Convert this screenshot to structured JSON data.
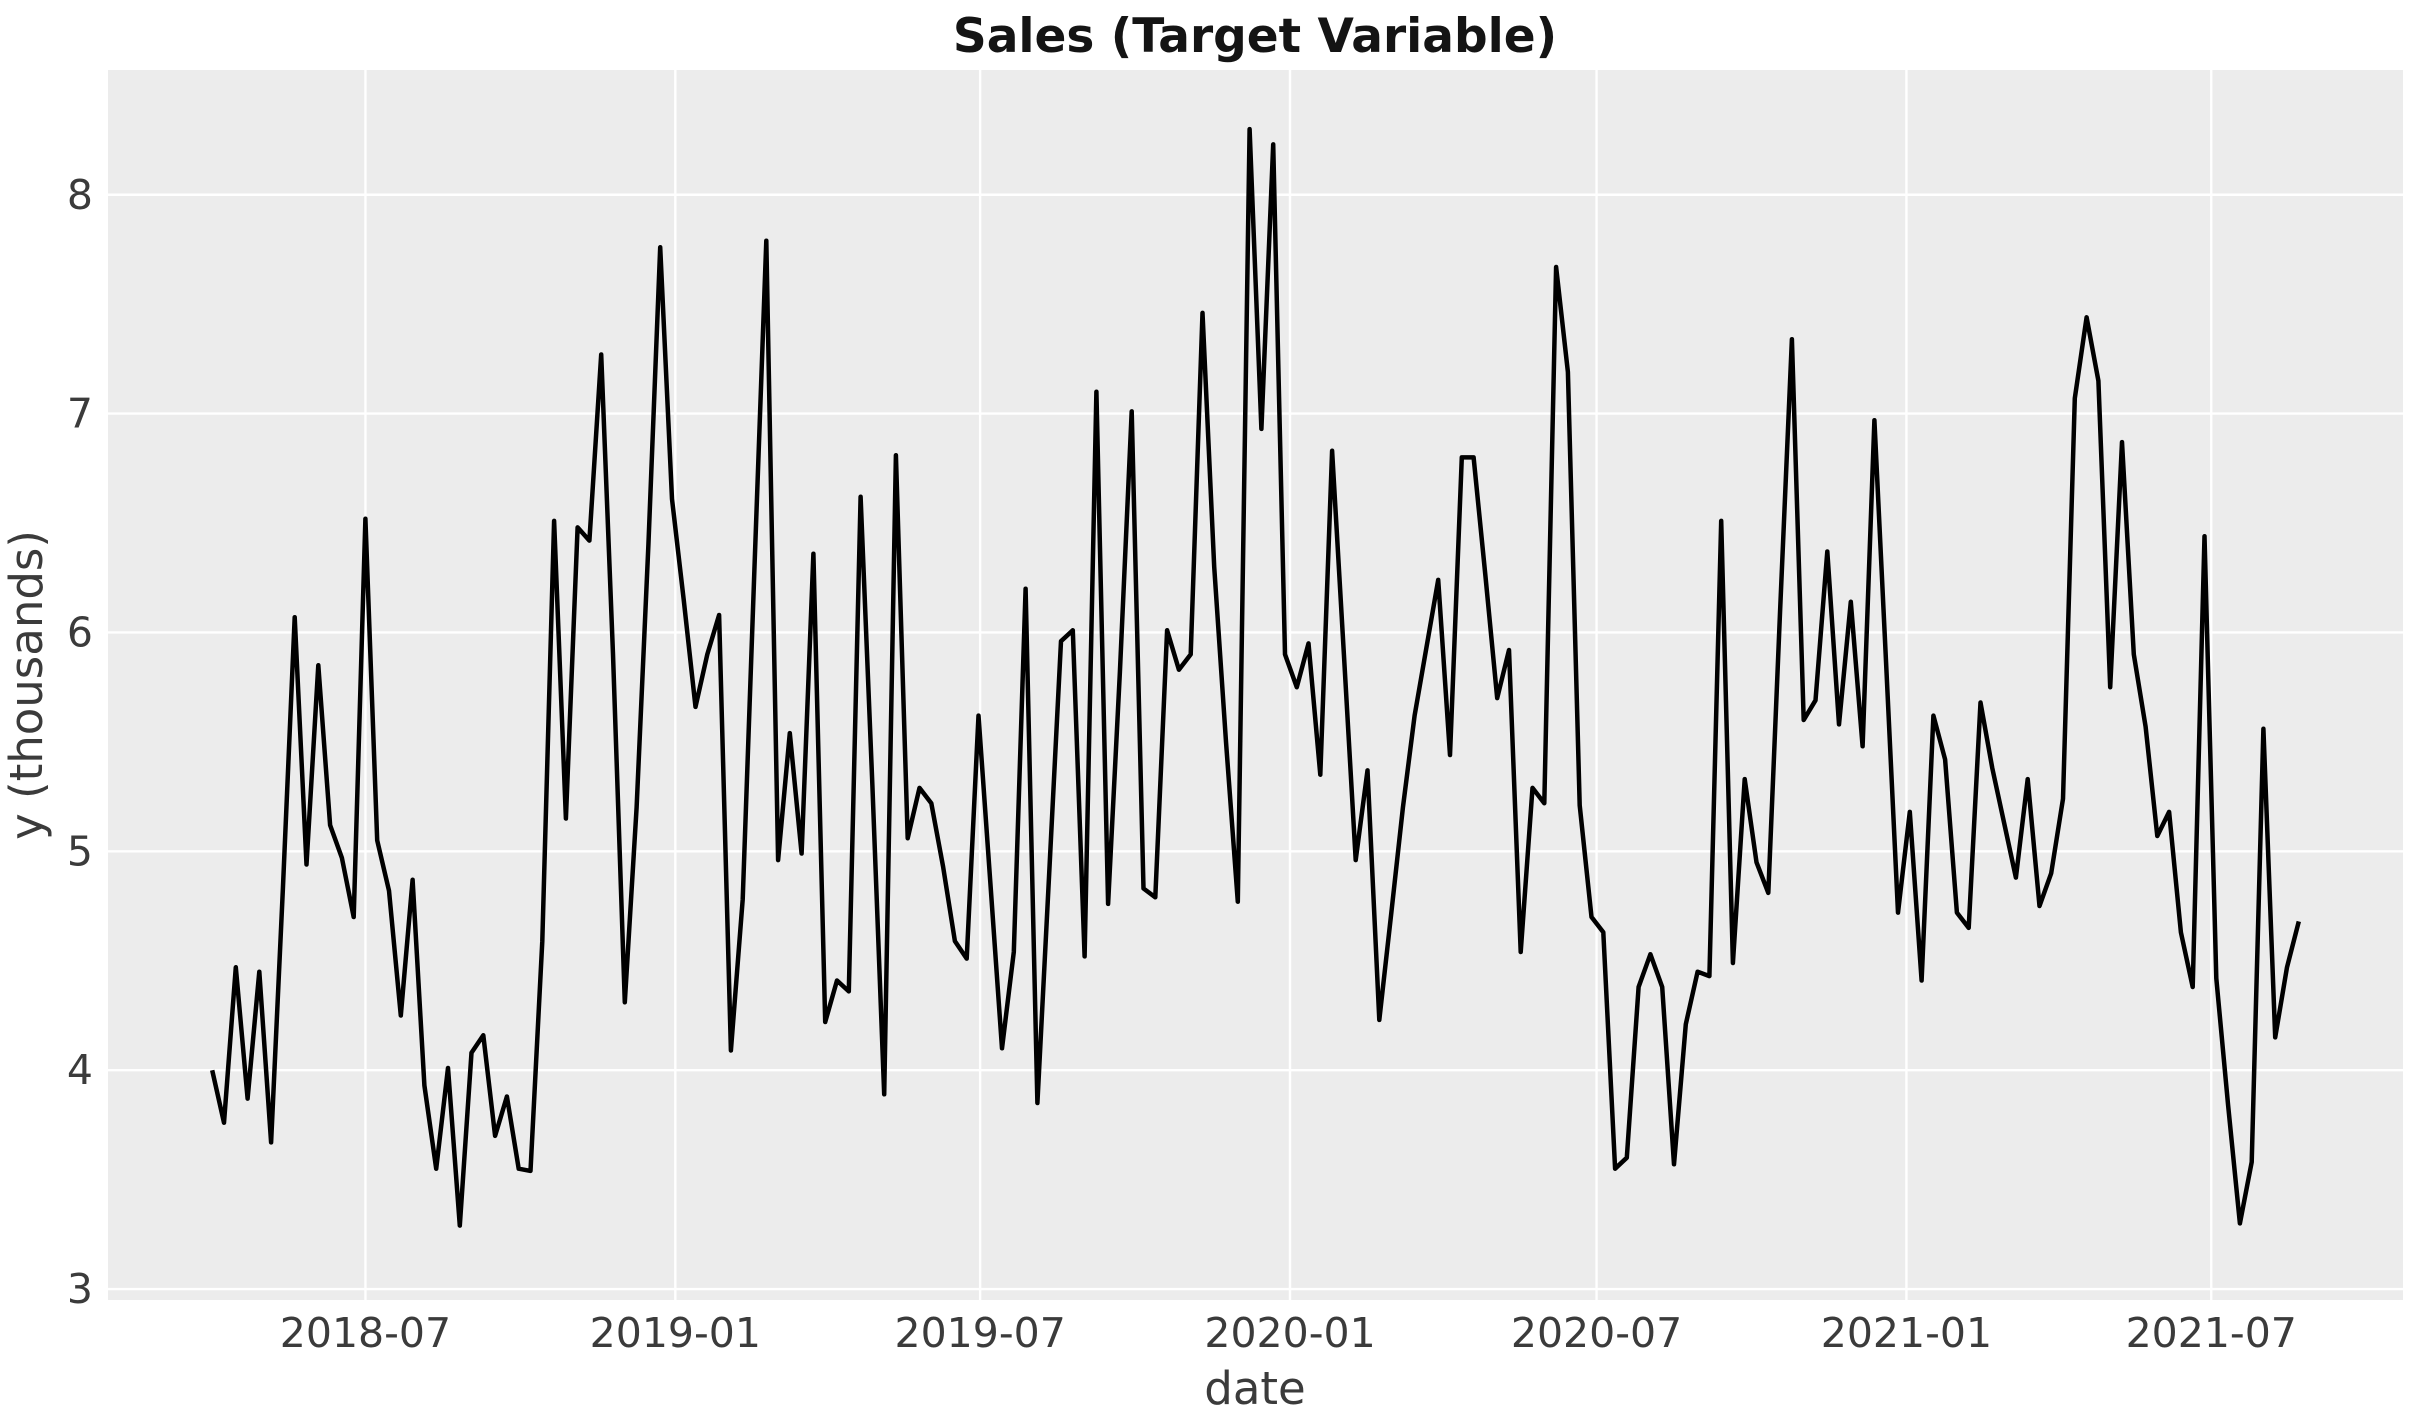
{
  "title": "Sales (Target Variable)",
  "x_axis": {
    "label": "date",
    "tick_labels": [
      "2018-07",
      "2019-01",
      "2019-07",
      "2020-01",
      "2020-07",
      "2021-01",
      "2021-07"
    ],
    "tick_dates": [
      "2018-07-01",
      "2019-01-01",
      "2019-07-01",
      "2020-01-01",
      "2020-07-01",
      "2021-01-01",
      "2021-07-01"
    ]
  },
  "y_axis": {
    "label": "y (thousands)",
    "tick_labels": [
      "3",
      "4",
      "5",
      "6",
      "7",
      "8"
    ],
    "tick_values": [
      3,
      4,
      5,
      6,
      7,
      8
    ]
  },
  "chart_data": {
    "type": "line",
    "title": "Sales (Target Variable)",
    "xlabel": "date",
    "ylabel": "y (thousands)",
    "legend": false,
    "grid": true,
    "frequency": "weekly",
    "start_date": "2018-04-01",
    "end_date": "2021-08-22",
    "ylim": [
      2.95,
      8.57
    ],
    "line_color": "#000000",
    "plot_background": "#ececec",
    "grid_color": "#ffffff",
    "x": [
      "2018-04-01",
      "2018-04-08",
      "2018-04-15",
      "2018-04-22",
      "2018-04-29",
      "2018-05-06",
      "2018-05-13",
      "2018-05-20",
      "2018-05-27",
      "2018-06-03",
      "2018-06-10",
      "2018-06-17",
      "2018-06-24",
      "2018-07-01",
      "2018-07-08",
      "2018-07-15",
      "2018-07-22",
      "2018-07-29",
      "2018-08-05",
      "2018-08-12",
      "2018-08-19",
      "2018-08-26",
      "2018-09-02",
      "2018-09-09",
      "2018-09-16",
      "2018-09-23",
      "2018-09-30",
      "2018-10-07",
      "2018-10-14",
      "2018-10-21",
      "2018-10-28",
      "2018-11-04",
      "2018-11-11",
      "2018-11-18",
      "2018-11-25",
      "2018-12-02",
      "2018-12-09",
      "2018-12-16",
      "2018-12-23",
      "2018-12-30",
      "2019-01-06",
      "2019-01-13",
      "2019-01-20",
      "2019-01-27",
      "2019-02-03",
      "2019-02-10",
      "2019-02-17",
      "2019-02-24",
      "2019-03-03",
      "2019-03-10",
      "2019-03-17",
      "2019-03-24",
      "2019-03-31",
      "2019-04-07",
      "2019-04-14",
      "2019-04-21",
      "2019-04-28",
      "2019-05-05",
      "2019-05-12",
      "2019-05-19",
      "2019-05-26",
      "2019-06-02",
      "2019-06-09",
      "2019-06-16",
      "2019-06-23",
      "2019-06-30",
      "2019-07-07",
      "2019-07-14",
      "2019-07-21",
      "2019-07-28",
      "2019-08-04",
      "2019-08-11",
      "2019-08-18",
      "2019-08-25",
      "2019-09-01",
      "2019-09-08",
      "2019-09-15",
      "2019-09-22",
      "2019-09-29",
      "2019-10-06",
      "2019-10-13",
      "2019-10-20",
      "2019-10-27",
      "2019-11-03",
      "2019-11-10",
      "2019-11-17",
      "2019-11-24",
      "2019-12-01",
      "2019-12-08",
      "2019-12-15",
      "2019-12-22",
      "2019-12-29",
      "2020-01-05",
      "2020-01-12",
      "2020-01-19",
      "2020-01-26",
      "2020-02-02",
      "2020-02-09",
      "2020-02-16",
      "2020-02-23",
      "2020-03-01",
      "2020-03-08",
      "2020-03-15",
      "2020-03-22",
      "2020-03-29",
      "2020-04-05",
      "2020-04-12",
      "2020-04-19",
      "2020-04-26",
      "2020-05-03",
      "2020-05-10",
      "2020-05-17",
      "2020-05-24",
      "2020-05-31",
      "2020-06-07",
      "2020-06-14",
      "2020-06-21",
      "2020-06-28",
      "2020-07-05",
      "2020-07-12",
      "2020-07-19",
      "2020-07-26",
      "2020-08-02",
      "2020-08-09",
      "2020-08-16",
      "2020-08-23",
      "2020-08-30",
      "2020-09-06",
      "2020-09-13",
      "2020-09-20",
      "2020-09-27",
      "2020-10-04",
      "2020-10-11",
      "2020-10-18",
      "2020-10-25",
      "2020-11-01",
      "2020-11-08",
      "2020-11-15",
      "2020-11-22",
      "2020-11-29",
      "2020-12-06",
      "2020-12-13",
      "2020-12-20",
      "2020-12-27",
      "2021-01-03",
      "2021-01-10",
      "2021-01-17",
      "2021-01-24",
      "2021-01-31",
      "2021-02-07",
      "2021-02-14",
      "2021-02-21",
      "2021-02-28",
      "2021-03-07",
      "2021-03-14",
      "2021-03-21",
      "2021-03-28",
      "2021-04-04",
      "2021-04-11",
      "2021-04-18",
      "2021-04-25",
      "2021-05-02",
      "2021-05-09",
      "2021-05-16",
      "2021-05-23",
      "2021-05-30",
      "2021-06-06",
      "2021-06-13",
      "2021-06-20",
      "2021-06-27",
      "2021-07-04",
      "2021-07-11",
      "2021-07-18",
      "2021-07-25",
      "2021-08-01",
      "2021-08-08",
      "2021-08-15",
      "2021-08-22"
    ],
    "values": [
      4.0,
      3.76,
      4.47,
      3.87,
      4.45,
      3.67,
      4.83,
      6.07,
      4.94,
      5.85,
      5.12,
      4.97,
      4.7,
      6.52,
      5.05,
      4.82,
      4.25,
      4.87,
      3.93,
      3.55,
      4.01,
      3.29,
      4.08,
      4.16,
      3.7,
      3.88,
      3.55,
      3.54,
      4.59,
      6.51,
      5.15,
      6.48,
      6.42,
      7.27,
      5.9,
      4.31,
      5.2,
      6.4,
      7.76,
      6.61,
      6.15,
      5.66,
      5.9,
      6.08,
      4.09,
      4.78,
      6.3,
      7.79,
      4.96,
      5.54,
      4.99,
      6.36,
      4.22,
      4.41,
      4.36,
      6.62,
      5.3,
      3.89,
      6.81,
      5.06,
      5.29,
      5.22,
      4.93,
      4.59,
      4.51,
      5.62,
      4.86,
      4.1,
      4.54,
      6.2,
      3.85,
      4.9,
      5.96,
      6.01,
      4.52,
      7.1,
      4.76,
      5.82,
      7.01,
      4.83,
      4.79,
      6.01,
      5.83,
      5.9,
      7.46,
      6.3,
      5.5,
      4.77,
      8.3,
      6.93,
      8.23,
      5.9,
      5.75,
      5.95,
      5.35,
      6.83,
      5.9,
      4.96,
      5.37,
      4.23,
      4.71,
      5.2,
      5.62,
      5.93,
      6.24,
      5.44,
      6.8,
      6.8,
      6.26,
      5.7,
      5.92,
      4.54,
      5.29,
      5.22,
      7.67,
      7.19,
      5.21,
      4.7,
      4.63,
      3.55,
      3.6,
      4.38,
      4.53,
      4.38,
      3.57,
      4.21,
      4.45,
      4.43,
      6.51,
      4.49,
      5.33,
      4.95,
      4.81,
      6.1,
      7.34,
      5.6,
      5.69,
      6.37,
      5.58,
      6.14,
      5.48,
      6.97,
      5.85,
      4.72,
      5.18,
      4.41,
      5.62,
      5.42,
      4.72,
      4.65,
      5.68,
      5.38,
      5.13,
      4.88,
      5.33,
      4.75,
      4.9,
      5.24,
      7.07,
      7.44,
      7.15,
      5.75,
      6.87,
      5.9,
      5.57,
      5.07,
      5.18,
      4.63,
      4.38,
      6.44,
      4.42,
      3.84,
      3.3,
      3.58,
      5.56,
      4.15,
      4.47,
      4.68
    ]
  }
}
